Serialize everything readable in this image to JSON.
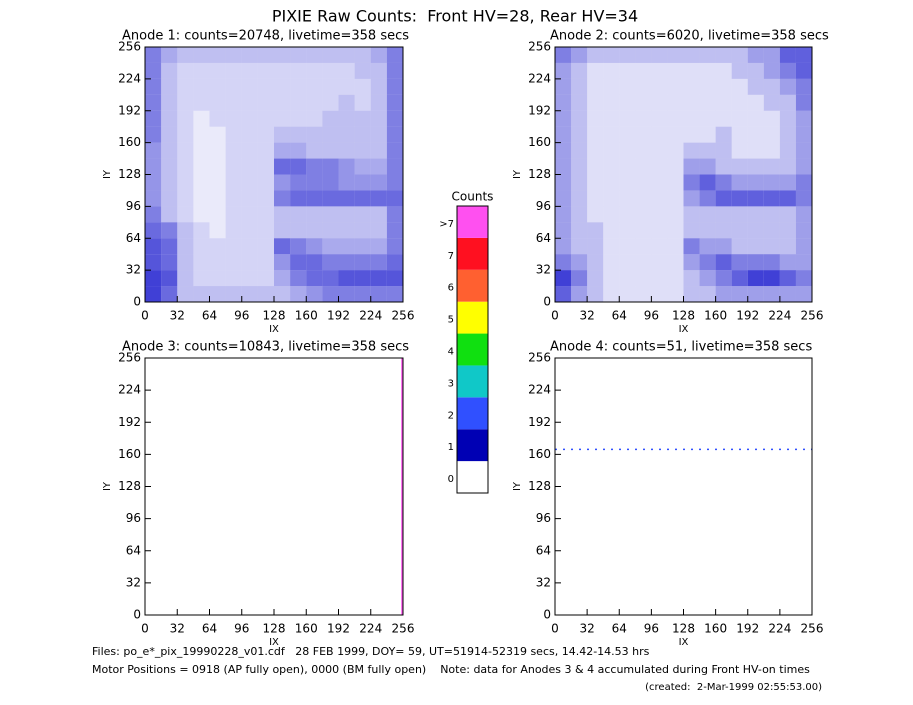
{
  "chart_data": {
    "type": "heatmap",
    "title": "PIXIE Raw Counts:  Front HV=28, Rear HV=34",
    "panels": [
      {
        "type": "heatmap",
        "title": "Anode 1: counts=20748, livetime=358 secs",
        "xlabel": "IX",
        "ylabel": "IY",
        "xlim": [
          0,
          256
        ],
        "ylim": [
          0,
          256
        ],
        "xticks": [
          0,
          32,
          64,
          96,
          128,
          160,
          192,
          224,
          256
        ],
        "yticks": [
          0,
          32,
          64,
          96,
          128,
          160,
          192,
          224,
          256
        ],
        "color": "#0000c8",
        "density": [
          [
            6,
            4,
            3,
            3,
            3,
            3,
            3,
            3,
            3,
            3,
            3,
            3,
            3,
            3,
            4,
            6
          ],
          [
            6,
            3,
            2,
            2,
            2,
            2,
            2,
            2,
            2,
            2,
            2,
            2,
            2,
            3,
            3,
            6
          ],
          [
            6,
            3,
            2,
            2,
            2,
            2,
            2,
            2,
            2,
            2,
            2,
            2,
            2,
            2,
            3,
            6
          ],
          [
            6,
            3,
            2,
            2,
            2,
            2,
            2,
            2,
            2,
            2,
            2,
            2,
            3,
            2,
            3,
            6
          ],
          [
            6,
            3,
            2,
            1,
            2,
            2,
            2,
            2,
            2,
            2,
            2,
            3,
            3,
            3,
            3,
            6
          ],
          [
            6,
            3,
            2,
            1,
            1,
            2,
            2,
            2,
            3,
            3,
            3,
            3,
            3,
            3,
            3,
            6
          ],
          [
            5,
            3,
            2,
            1,
            1,
            2,
            2,
            2,
            4,
            4,
            3,
            3,
            3,
            3,
            3,
            6
          ],
          [
            5,
            3,
            2,
            1,
            1,
            2,
            2,
            2,
            7,
            7,
            6,
            6,
            5,
            4,
            4,
            6
          ],
          [
            5,
            3,
            2,
            1,
            1,
            2,
            2,
            2,
            5,
            6,
            6,
            6,
            5,
            5,
            5,
            6
          ],
          [
            5,
            3,
            2,
            1,
            1,
            2,
            2,
            2,
            6,
            7,
            7,
            7,
            7,
            7,
            7,
            7
          ],
          [
            6,
            3,
            2,
            1,
            1,
            2,
            2,
            2,
            3,
            3,
            3,
            3,
            3,
            3,
            3,
            6
          ],
          [
            7,
            6,
            3,
            2,
            1,
            2,
            2,
            2,
            3,
            3,
            3,
            3,
            3,
            3,
            3,
            6
          ],
          [
            8,
            7,
            3,
            2,
            2,
            2,
            2,
            2,
            7,
            6,
            5,
            4,
            4,
            4,
            4,
            6
          ],
          [
            8,
            7,
            3,
            2,
            2,
            2,
            2,
            2,
            5,
            7,
            7,
            6,
            6,
            6,
            6,
            7
          ],
          [
            9,
            8,
            3,
            2,
            2,
            2,
            2,
            2,
            4,
            6,
            7,
            7,
            8,
            8,
            8,
            8
          ],
          [
            9,
            7,
            3,
            3,
            3,
            3,
            3,
            3,
            3,
            4,
            5,
            6,
            6,
            6,
            6,
            6
          ]
        ]
      },
      {
        "type": "heatmap",
        "title": "Anode 2: counts=6020, livetime=358 secs",
        "xlabel": "IX",
        "ylabel": "IY",
        "xlim": [
          0,
          256
        ],
        "ylim": [
          0,
          256
        ],
        "xticks": [
          0,
          32,
          64,
          96,
          128,
          160,
          192,
          224,
          256
        ],
        "yticks": [
          0,
          32,
          64,
          96,
          128,
          160,
          192,
          224,
          256
        ],
        "color": "#0000c8",
        "density": [
          [
            4,
            3,
            2,
            2,
            2,
            2,
            2,
            2,
            2,
            2,
            2,
            2,
            3,
            3,
            5,
            5
          ],
          [
            3,
            2,
            1,
            1,
            1,
            1,
            1,
            1,
            1,
            1,
            1,
            2,
            2,
            3,
            4,
            5
          ],
          [
            3,
            2,
            1,
            1,
            1,
            1,
            1,
            1,
            1,
            1,
            1,
            1,
            2,
            2,
            3,
            4
          ],
          [
            3,
            2,
            1,
            1,
            1,
            1,
            1,
            1,
            1,
            1,
            1,
            1,
            1,
            2,
            2,
            4
          ],
          [
            3,
            2,
            1,
            1,
            1,
            1,
            1,
            1,
            1,
            1,
            1,
            1,
            1,
            1,
            2,
            3
          ],
          [
            3,
            2,
            1,
            1,
            1,
            1,
            1,
            1,
            1,
            1,
            2,
            1,
            1,
            1,
            2,
            3
          ],
          [
            3,
            2,
            1,
            1,
            1,
            1,
            1,
            1,
            2,
            2,
            2,
            1,
            1,
            1,
            2,
            3
          ],
          [
            3,
            2,
            1,
            1,
            1,
            1,
            1,
            1,
            3,
            3,
            2,
            2,
            2,
            2,
            2,
            3
          ],
          [
            3,
            2,
            1,
            1,
            1,
            1,
            1,
            1,
            4,
            5,
            4,
            3,
            3,
            3,
            3,
            4
          ],
          [
            3,
            2,
            1,
            1,
            1,
            1,
            1,
            1,
            3,
            4,
            5,
            5,
            5,
            5,
            5,
            4
          ],
          [
            3,
            2,
            1,
            1,
            1,
            1,
            1,
            1,
            2,
            2,
            2,
            2,
            2,
            2,
            2,
            3
          ],
          [
            3,
            2,
            2,
            1,
            1,
            1,
            1,
            1,
            2,
            2,
            2,
            2,
            2,
            2,
            2,
            3
          ],
          [
            3,
            2,
            2,
            1,
            1,
            1,
            1,
            1,
            4,
            3,
            3,
            2,
            2,
            2,
            2,
            3
          ],
          [
            4,
            3,
            2,
            1,
            1,
            1,
            1,
            1,
            3,
            4,
            5,
            4,
            4,
            4,
            3,
            3
          ],
          [
            6,
            4,
            2,
            1,
            1,
            1,
            1,
            1,
            2,
            3,
            4,
            5,
            6,
            6,
            5,
            4
          ],
          [
            5,
            3,
            2,
            1,
            1,
            1,
            1,
            1,
            2,
            2,
            3,
            3,
            3,
            3,
            3,
            3
          ]
        ]
      },
      {
        "type": "heatmap",
        "title": "Anode 3: counts=10843, livetime=358 secs",
        "xlabel": "IX",
        "ylabel": "IY",
        "xlim": [
          0,
          256
        ],
        "ylim": [
          0,
          256
        ],
        "xticks": [
          0,
          32,
          64,
          96,
          128,
          160,
          192,
          224,
          256
        ],
        "yticks": [
          0,
          32,
          64,
          96,
          128,
          160,
          192,
          224,
          256
        ],
        "trace": {
          "x": [
            255,
            255
          ],
          "y": [
            0,
            256
          ],
          "color": "#ff50f0",
          "dash": "solid"
        }
      },
      {
        "type": "heatmap",
        "title": "Anode 4: counts=51, livetime=358 secs",
        "xlabel": "IX",
        "ylabel": "IY",
        "xlim": [
          0,
          256
        ],
        "ylim": [
          0,
          256
        ],
        "xticks": [
          0,
          32,
          64,
          96,
          128,
          160,
          192,
          224,
          256
        ],
        "yticks": [
          0,
          32,
          64,
          96,
          128,
          160,
          192,
          224,
          256
        ],
        "trace": {
          "x": [
            0,
            256
          ],
          "y": [
            165,
            165
          ],
          "color": "#3050ff",
          "dash": "dotted"
        }
      }
    ],
    "colorbar": {
      "title": "Counts",
      "ticks": [
        0,
        1,
        2,
        3,
        4,
        5,
        6,
        7,
        {
          "value": 8,
          "label": ">7"
        }
      ],
      "colors": [
        "#ffffff",
        "#0000b4",
        "#3050ff",
        "#10c8c8",
        "#10e010",
        "#ffff00",
        "#ff6030",
        "#ff1020",
        "#ff50f0"
      ]
    },
    "footer": [
      "Files: po_e*_pix_19990228_v01.cdf   28 FEB 1999, DOY= 59, UT=51914-52319 secs, 14.42-14.53 hrs",
      "Motor Positions = 0918 (AP fully open), 0000 (BM fully open)    Note: data for Anodes 3 & 4 accumulated during Front HV-on times",
      "(created:  2-Mar-1999 02:55:53.00)"
    ]
  }
}
